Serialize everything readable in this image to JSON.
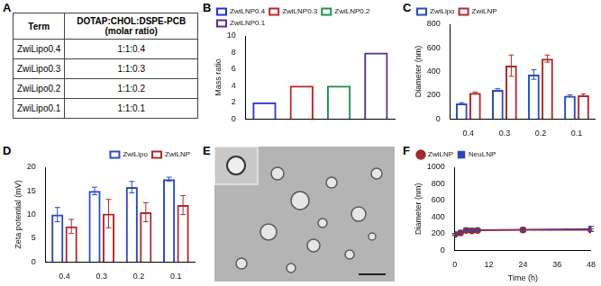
{
  "table": {
    "title": "A",
    "header": [
      "Term",
      "DOTAP:CHOL:DSPE-PCB (molar ratio)"
    ],
    "rows": [
      [
        "ZwiLipo0.4",
        "1:1:0.4"
      ],
      [
        "ZwiLipo0.3",
        "1:1:0.3"
      ],
      [
        "ZwiLipo0.2",
        "1:1:0.2"
      ],
      [
        "ZwiLipo0.1",
        "1:1:0.1"
      ]
    ]
  },
  "chart_data": [
    {
      "title": "B",
      "type": "bar",
      "ylabel": "Mass ratio",
      "categories": [
        null,
        null,
        null,
        null
      ],
      "series": [
        {
          "name": "ZwiLNP0.4",
          "color": "#2233cc",
          "values": [
            2,
            null,
            null,
            null
          ]
        },
        {
          "name": "ZwiLNP0.3",
          "color": "#c0282d",
          "values": [
            null,
            4,
            null,
            null
          ]
        },
        {
          "name": "ZwiLNP0.2",
          "color": "#1f8f4e",
          "values": [
            null,
            null,
            4,
            null
          ]
        },
        {
          "name": "ZwiLNP0.1",
          "color": "#5b2c83",
          "values": [
            null,
            null,
            null,
            8
          ]
        }
      ],
      "ylim": [
        0,
        10
      ],
      "yticks": [
        0,
        2,
        4,
        6,
        8,
        10
      ],
      "grid": false,
      "legend": "top-left"
    },
    {
      "title": "C",
      "type": "bar",
      "ylabel": "Diameter (nm)",
      "categories": [
        "0.4",
        "0.3",
        "0.2",
        "0.1"
      ],
      "series": [
        {
          "name": "ZwiLipo",
          "color": "#2a4bc0",
          "values": [
            130,
            245,
            375,
            195
          ],
          "error": [
            8,
            10,
            40,
            8
          ]
        },
        {
          "name": "ZwiLNP",
          "color": "#b02a2a",
          "values": [
            220,
            450,
            510,
            200
          ],
          "error": [
            8,
            90,
            30,
            10
          ]
        }
      ],
      "ylim": [
        0,
        800
      ],
      "yticks": [
        0,
        200,
        400,
        600,
        800
      ],
      "grid": false,
      "legend": "top-left"
    },
    {
      "title": "D",
      "type": "bar",
      "ylabel": "Zeta potential (mV)",
      "categories": [
        "0.4",
        "0.3",
        "0.2",
        "0.1"
      ],
      "series": [
        {
          "name": "ZwiLipo",
          "color": "#2a4bc0",
          "values": [
            10,
            15,
            15.8,
            17.5
          ],
          "error": [
            1.5,
            0.8,
            1.2,
            0.4
          ]
        },
        {
          "name": "ZwiLNP",
          "color": "#b02a2a",
          "values": [
            7.5,
            10.2,
            10.5,
            12
          ],
          "error": [
            1.5,
            3,
            2,
            2
          ]
        }
      ],
      "ylim": [
        0,
        20
      ],
      "yticks": [
        0,
        5,
        10,
        15,
        20
      ],
      "grid": false,
      "legend": "top-right"
    },
    {
      "title": "F",
      "type": "line",
      "ylabel": "Diameter (nm)",
      "xlabel": "Time (h)",
      "x": [
        0,
        2,
        4,
        6,
        8,
        24,
        48
      ],
      "series": [
        {
          "name": "ZwiLNP",
          "color": "#9e2a2a",
          "marker": "circle",
          "line_style": "solid",
          "values": [
            190,
            210,
            240,
            235,
            240,
            245,
            245
          ],
          "error": [
            10,
            15,
            20,
            12,
            10,
            12,
            15
          ]
        },
        {
          "name": "NeuLNP",
          "color": "#2b47b8",
          "marker": "square",
          "line_style": "solid",
          "values": [
            195,
            215,
            245,
            240,
            245,
            250,
            260
          ],
          "error": [
            10,
            15,
            20,
            15,
            10,
            15,
            30
          ]
        }
      ],
      "xlim": [
        0,
        48
      ],
      "xticks": [
        0,
        12,
        24,
        36,
        48
      ],
      "ylim": [
        0,
        1000
      ],
      "yticks": [
        0,
        200,
        400,
        600,
        800,
        1000
      ],
      "grid": false,
      "legend": "top-left"
    }
  ],
  "image": {
    "title": "E"
  }
}
